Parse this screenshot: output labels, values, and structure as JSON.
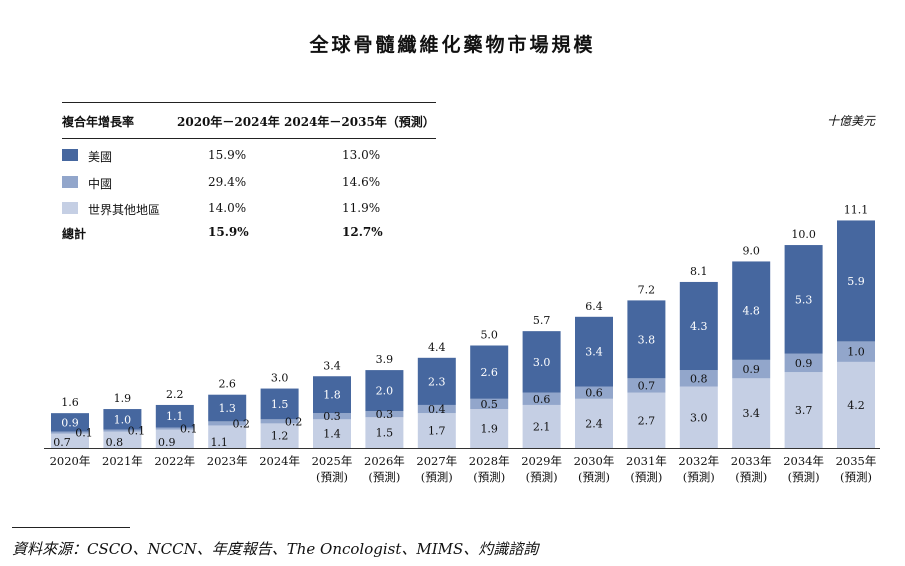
{
  "chart_data": {
    "type": "bar",
    "stacked": true,
    "title": "全球骨髓纖維化藥物市場規模",
    "unit_label": "十億美元",
    "categories": [
      "2020年",
      "2021年",
      "2022年",
      "2023年",
      "2024年",
      "2025年",
      "2026年",
      "2027年",
      "2028年",
      "2029年",
      "2030年",
      "2031年",
      "2032年",
      "2033年",
      "2034年",
      "2035年"
    ],
    "category_sub": [
      "",
      "",
      "",
      "",
      "",
      "(預測)",
      "(預測)",
      "(預測)",
      "(預測)",
      "(預測)",
      "(預測)",
      "(預測)",
      "(預測)",
      "(預測)",
      "(預測)",
      "(預測)"
    ],
    "series": [
      {
        "name": "世界其他地區",
        "color": "#c5cfe4",
        "values": [
          0.7,
          0.8,
          0.9,
          1.1,
          1.2,
          1.4,
          1.5,
          1.7,
          1.9,
          2.1,
          2.4,
          2.7,
          3.0,
          3.4,
          3.7,
          4.2
        ]
      },
      {
        "name": "中國",
        "color": "#92a6cb",
        "values": [
          0.1,
          0.1,
          0.1,
          0.2,
          0.2,
          0.3,
          0.3,
          0.4,
          0.5,
          0.6,
          0.6,
          0.7,
          0.8,
          0.9,
          0.9,
          1.0
        ]
      },
      {
        "name": "美國",
        "color": "#46679f",
        "values": [
          0.9,
          1.0,
          1.1,
          1.3,
          1.5,
          1.8,
          2.0,
          2.3,
          2.6,
          3.0,
          3.4,
          3.8,
          4.3,
          4.8,
          5.3,
          5.9
        ]
      }
    ],
    "totals": [
      1.6,
      1.9,
      2.2,
      2.6,
      3.0,
      3.4,
      3.9,
      4.4,
      5.0,
      5.7,
      6.4,
      7.2,
      8.1,
      9.0,
      10.0,
      11.1
    ],
    "ylim": [
      0,
      12
    ]
  },
  "cagr_table": {
    "header": [
      "複合年增長率",
      "2020年－2024年",
      "2024年－2035年（預測）"
    ],
    "rows": [
      {
        "label": "美國",
        "color": "#46679f",
        "c1": "15.9%",
        "c2": "13.0%"
      },
      {
        "label": "中國",
        "color": "#92a6cb",
        "c1": "29.4%",
        "c2": "14.6%"
      },
      {
        "label": "世界其他地區",
        "color": "#c5cfe4",
        "c1": "14.0%",
        "c2": "11.9%"
      }
    ],
    "total": {
      "label": "總計",
      "c1": "15.9%",
      "c2": "12.7%"
    }
  },
  "source": "資料來源：CSCO、NCCN、年度報告、The Oncologist、MIMS、灼識諮詢"
}
